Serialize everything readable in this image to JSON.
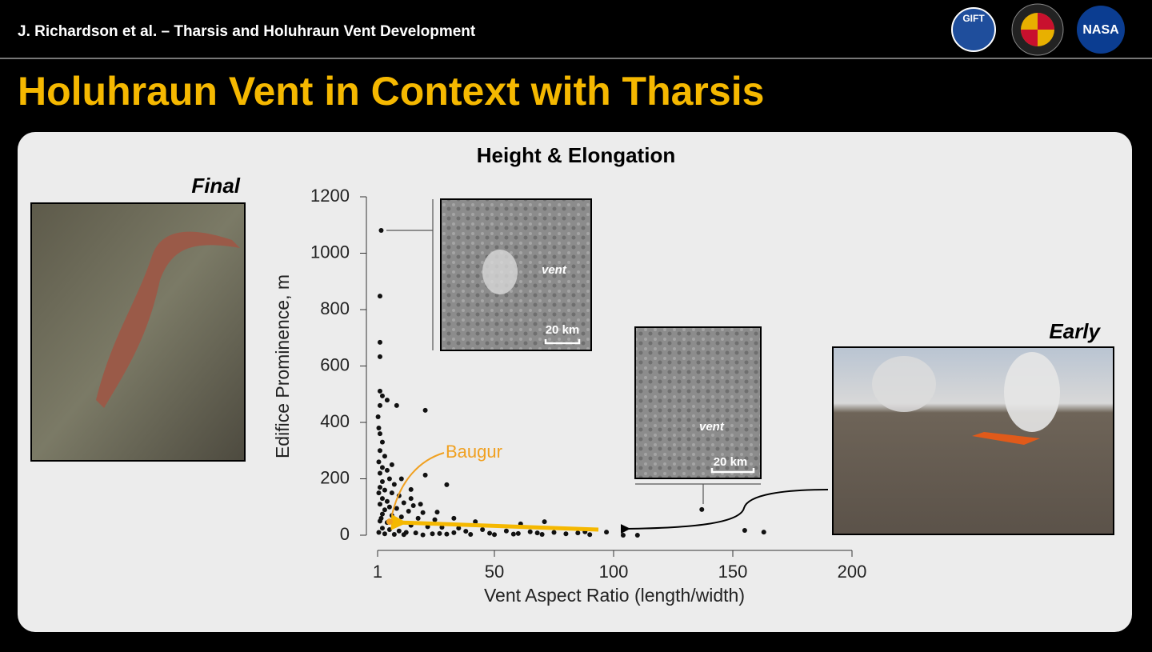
{
  "header": {
    "author_title": "J. Richardson et al. – Tharsis and Holuhraun Vent Development",
    "logos": [
      "GIFT",
      "NASA"
    ]
  },
  "slide_title": "Holuhraun Vent in Context with Tharsis",
  "panels": {
    "final_label": "Final",
    "early_label": "Early",
    "inset_top": {
      "vent_label": "vent",
      "scale_label": "20 km"
    },
    "inset_mid": {
      "vent_label": "vent",
      "scale_label": "20 km"
    }
  },
  "chart_data": {
    "type": "scatter",
    "title": "Height & Elongation",
    "x_label": "Vent Aspect Ratio (length/width)",
    "y_label": "Edifice Prominence, m",
    "xlim": [
      1,
      200
    ],
    "xticks": [
      1,
      50,
      100,
      150,
      200
    ],
    "ylim": [
      0,
      1200
    ],
    "yticks": [
      0,
      200,
      400,
      600,
      800,
      1000,
      1200
    ],
    "color": "#111111",
    "x": [
      2.5,
      2,
      2,
      2,
      2,
      3,
      5,
      9,
      21,
      30,
      21,
      137,
      155,
      163,
      110,
      104,
      97,
      71,
      61,
      42,
      33,
      26,
      16,
      15,
      1.5,
      2,
      3,
      2,
      4,
      1.5,
      3,
      5,
      2,
      6,
      3,
      8,
      2,
      4,
      7,
      10,
      3,
      5,
      12,
      2,
      6,
      9,
      4,
      14,
      20,
      3,
      7,
      11,
      18,
      25,
      2,
      5,
      9,
      15,
      22,
      28,
      35,
      45,
      55,
      65,
      75,
      85,
      3,
      6,
      10,
      13,
      17,
      24,
      30,
      40,
      50,
      60,
      70,
      80,
      90,
      1.5,
      4,
      8,
      12,
      20,
      27,
      33,
      38,
      48,
      58,
      68,
      88,
      1.5,
      2.5,
      1.2,
      2,
      7,
      11,
      15,
      19
    ],
    "y": [
      1081,
      848,
      684,
      633,
      511,
      494,
      479,
      460,
      443,
      179,
      213,
      91,
      17,
      11,
      0,
      0,
      11,
      48,
      40,
      48,
      60,
      82,
      105,
      162,
      380,
      360,
      330,
      300,
      280,
      260,
      240,
      230,
      220,
      200,
      190,
      180,
      170,
      160,
      150,
      140,
      130,
      120,
      115,
      110,
      100,
      95,
      90,
      85,
      80,
      75,
      70,
      65,
      60,
      55,
      50,
      45,
      40,
      35,
      30,
      28,
      25,
      20,
      15,
      12,
      10,
      8,
      25,
      20,
      15,
      10,
      8,
      5,
      4,
      3,
      2,
      6,
      3,
      5,
      2,
      10,
      5,
      3,
      2,
      1,
      6,
      9,
      14,
      7,
      4,
      8,
      12,
      150,
      60,
      420,
      460,
      250,
      200,
      130,
      110
    ],
    "highlight": {
      "label": "Baugur",
      "x": 6,
      "y": 48,
      "color": "#f0a020"
    }
  }
}
